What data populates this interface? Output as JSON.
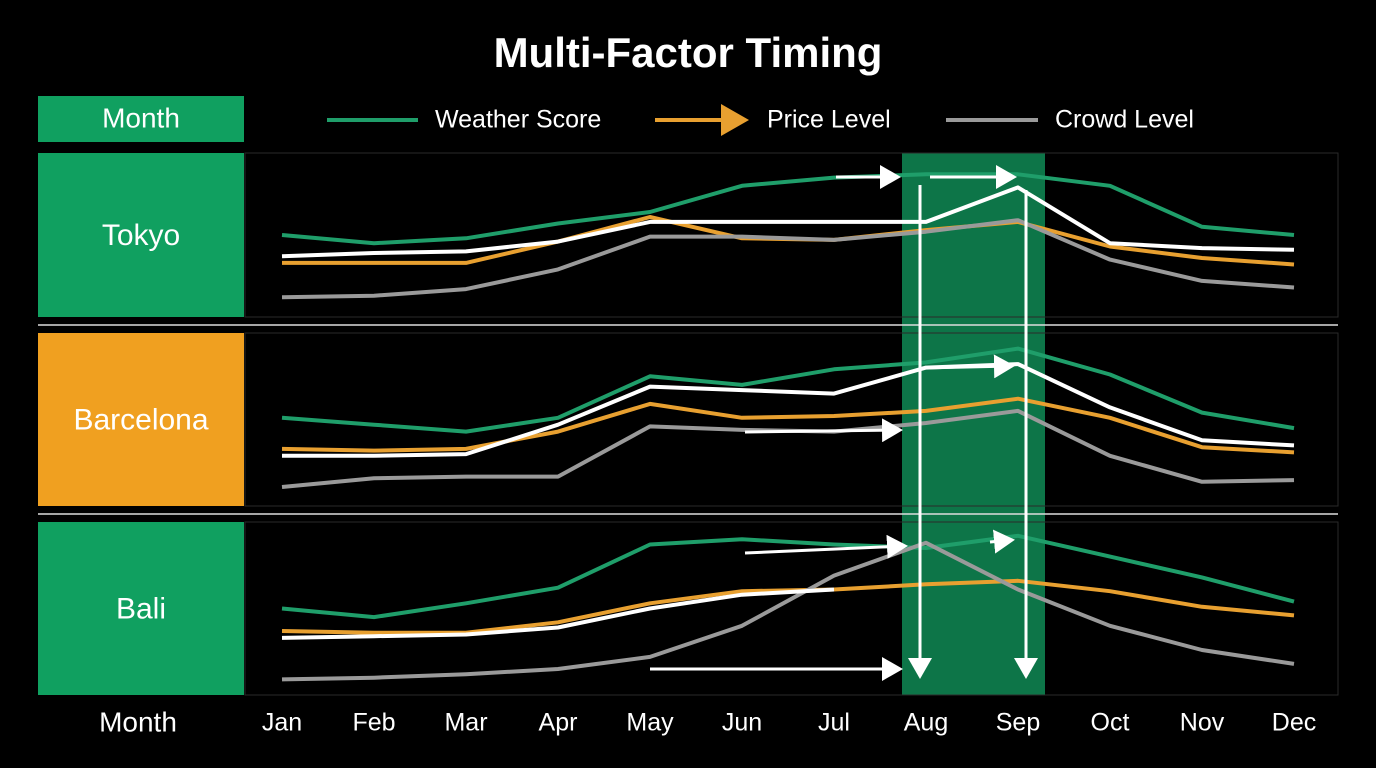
{
  "chart_data": {
    "type": "line",
    "title": "Multi-Factor Timing",
    "header_label": "Month",
    "x_label": "Month",
    "categories": [
      "Jan",
      "Feb",
      "Mar",
      "Apr",
      "May",
      "Jun",
      "Jul",
      "Aug",
      "Sep",
      "Oct",
      "Nov",
      "Dec"
    ],
    "ylim": [
      0,
      100
    ],
    "series": [
      {
        "name": "Weather Score",
        "color": "#1f9e6a"
      },
      {
        "name": "Price Level",
        "color": "#e8a030"
      },
      {
        "name": "Crowd Level",
        "color": "#9a9a9a"
      },
      {
        "color": "#ffffff"
      }
    ],
    "panels": [
      {
        "label": "Tokyo",
        "color": "#10a060",
        "values": [
          [
            50,
            45,
            48,
            57,
            64,
            80,
            85,
            87,
            87,
            80,
            55,
            50
          ],
          [
            33,
            33,
            33,
            46,
            61,
            48,
            47,
            53,
            58,
            43,
            36,
            32
          ],
          [
            12,
            13,
            17,
            29,
            49,
            49,
            47,
            52,
            59,
            35,
            22,
            18
          ],
          [
            37,
            39,
            40,
            46,
            58,
            58,
            58,
            58,
            79,
            45,
            42,
            41
          ]
        ]
      },
      {
        "label": "Barcelona",
        "color": "#f0a020",
        "values": [
          [
            51,
            47,
            43,
            51,
            75,
            70,
            79,
            83,
            91,
            76,
            54,
            45
          ],
          [
            33,
            32,
            33,
            43,
            59,
            51,
            52,
            55,
            62,
            51,
            34,
            31
          ],
          [
            11,
            16,
            17,
            17,
            46,
            44,
            43,
            48,
            55,
            29,
            14,
            15
          ],
          [
            29,
            29,
            30,
            47,
            69,
            67,
            65,
            80,
            82,
            57,
            38,
            35
          ]
        ]
      },
      {
        "label": "Bali",
        "color": "#10a060",
        "values": [
          [
            50,
            45,
            53,
            62,
            87,
            90,
            87,
            85,
            92,
            80,
            68,
            54
          ],
          [
            37,
            36,
            36,
            42,
            53,
            60,
            61,
            64,
            66,
            60,
            51,
            46
          ],
          [
            9,
            10,
            12,
            15,
            22,
            40,
            69,
            88,
            61,
            40,
            26,
            18
          ],
          [
            33,
            34,
            35,
            39,
            50,
            58,
            61,
            null,
            null,
            null,
            null,
            null
          ]
        ]
      }
    ]
  }
}
